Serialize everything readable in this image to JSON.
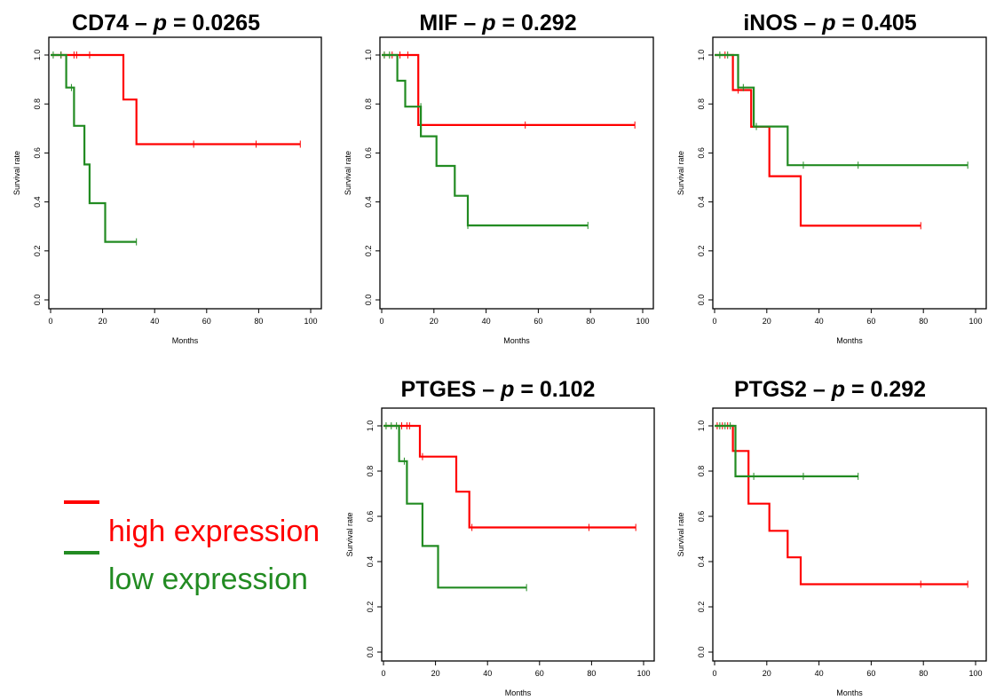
{
  "figure": {
    "legend": {
      "high_label": "high expression",
      "low_label": "low expression",
      "high_color": "#ff0000",
      "low_color": "#228b22"
    }
  },
  "chart_data": [
    {
      "type": "line",
      "title_gene": "CD74",
      "title_sep": " – ",
      "title_p": "p",
      "title_eq": " = ",
      "title_value": "0.0265",
      "xlabel": "Months",
      "ylabel": "Survival rate",
      "xlim": [
        0,
        100
      ],
      "ylim": [
        0,
        1
      ],
      "xticks": [
        0,
        20,
        40,
        60,
        80,
        100
      ],
      "yticks": [
        "0.0",
        "0.2",
        "0.4",
        "0.6",
        "0.8",
        "1.0"
      ],
      "series": [
        {
          "group": "high",
          "color": "#ff0000",
          "steps": [
            [
              0,
              1.0
            ],
            [
              28,
              1.0
            ],
            [
              28,
              0.818
            ],
            [
              33,
              0.818
            ],
            [
              33,
              0.636
            ],
            [
              96,
              0.636
            ]
          ],
          "censor": [
            [
              4,
              1.0
            ],
            [
              9,
              1.0
            ],
            [
              10,
              1.0
            ],
            [
              15,
              1.0
            ],
            [
              55,
              0.636
            ],
            [
              79,
              0.636
            ],
            [
              96,
              0.636
            ]
          ]
        },
        {
          "group": "low",
          "color": "#228b22",
          "steps": [
            [
              0,
              1.0
            ],
            [
              6,
              1.0
            ],
            [
              6,
              0.867
            ],
            [
              9,
              0.867
            ],
            [
              9,
              0.711
            ],
            [
              13,
              0.711
            ],
            [
              13,
              0.553
            ],
            [
              15,
              0.553
            ],
            [
              15,
              0.395
            ],
            [
              21,
              0.395
            ],
            [
              21,
              0.237
            ],
            [
              33,
              0.237
            ]
          ],
          "censor": [
            [
              1,
              1.0
            ],
            [
              4,
              1.0
            ],
            [
              8,
              0.867
            ],
            [
              33,
              0.237
            ]
          ]
        }
      ]
    },
    {
      "type": "line",
      "title_gene": "MIF",
      "title_sep": " – ",
      "title_p": "p",
      "title_eq": " = ",
      "title_value": "0.292",
      "xlabel": "Months",
      "ylabel": "Survival rate",
      "xlim": [
        0,
        100
      ],
      "ylim": [
        0,
        1
      ],
      "xticks": [
        0,
        20,
        40,
        60,
        80,
        100
      ],
      "yticks": [
        "0.0",
        "0.2",
        "0.4",
        "0.6",
        "0.8",
        "1.0"
      ],
      "series": [
        {
          "group": "high",
          "color": "#ff0000",
          "steps": [
            [
              0,
              1.0
            ],
            [
              14,
              1.0
            ],
            [
              14,
              0.714
            ],
            [
              97,
              0.714
            ]
          ],
          "censor": [
            [
              1,
              1.0
            ],
            [
              4,
              1.0
            ],
            [
              7,
              1.0
            ],
            [
              10,
              1.0
            ],
            [
              55,
              0.714
            ],
            [
              97,
              0.714
            ]
          ]
        },
        {
          "group": "low",
          "color": "#228b22",
          "steps": [
            [
              0,
              1.0
            ],
            [
              6,
              1.0
            ],
            [
              6,
              0.895
            ],
            [
              9,
              0.895
            ],
            [
              9,
              0.789
            ],
            [
              15,
              0.789
            ],
            [
              15,
              0.668
            ],
            [
              21,
              0.668
            ],
            [
              21,
              0.547
            ],
            [
              28,
              0.547
            ],
            [
              28,
              0.425
            ],
            [
              33,
              0.425
            ],
            [
              33,
              0.304
            ],
            [
              79,
              0.304
            ]
          ],
          "censor": [
            [
              1,
              1.0
            ],
            [
              3,
              1.0
            ],
            [
              15,
              0.789
            ],
            [
              33,
              0.304
            ],
            [
              79,
              0.304
            ]
          ]
        }
      ]
    },
    {
      "type": "line",
      "title_gene": "iNOS",
      "title_sep": " – ",
      "title_p": "p",
      "title_eq": " = ",
      "title_value": "0.405",
      "xlabel": "Months",
      "ylabel": "Survival rate",
      "xlim": [
        0,
        100
      ],
      "ylim": [
        0,
        1
      ],
      "xticks": [
        0,
        20,
        40,
        60,
        80,
        100
      ],
      "yticks": [
        "0.0",
        "0.2",
        "0.4",
        "0.6",
        "0.8",
        "1.0"
      ],
      "series": [
        {
          "group": "high",
          "color": "#ff0000",
          "steps": [
            [
              0,
              1.0
            ],
            [
              7,
              1.0
            ],
            [
              7,
              0.857
            ],
            [
              14,
              0.857
            ],
            [
              14,
              0.707
            ],
            [
              21,
              0.707
            ],
            [
              21,
              0.505
            ],
            [
              33,
              0.505
            ],
            [
              33,
              0.303
            ],
            [
              79,
              0.303
            ]
          ],
          "censor": [
            [
              4,
              1.0
            ],
            [
              9,
              0.857
            ],
            [
              79,
              0.303
            ]
          ]
        },
        {
          "group": "low",
          "color": "#228b22",
          "steps": [
            [
              0,
              1.0
            ],
            [
              9,
              1.0
            ],
            [
              9,
              0.867
            ],
            [
              15,
              0.867
            ],
            [
              15,
              0.708
            ],
            [
              28,
              0.708
            ],
            [
              28,
              0.55
            ],
            [
              97,
              0.55
            ]
          ],
          "censor": [
            [
              2,
              1.0
            ],
            [
              5,
              1.0
            ],
            [
              11,
              0.867
            ],
            [
              16,
              0.708
            ],
            [
              34,
              0.55
            ],
            [
              55,
              0.55
            ],
            [
              97,
              0.55
            ]
          ]
        }
      ]
    },
    {
      "type": "line",
      "title_gene": "PTGES",
      "title_sep": " – ",
      "title_p": "p",
      "title_eq": " = ",
      "title_value": "0.102",
      "xlabel": "Months",
      "ylabel": "Survival rate",
      "xlim": [
        0,
        100
      ],
      "ylim": [
        0,
        1
      ],
      "xticks": [
        0,
        20,
        40,
        60,
        80,
        100
      ],
      "yticks": [
        "0.0",
        "0.2",
        "0.4",
        "0.6",
        "0.8",
        "1.0"
      ],
      "series": [
        {
          "group": "high",
          "color": "#ff0000",
          "steps": [
            [
              0,
              1.0
            ],
            [
              14,
              1.0
            ],
            [
              14,
              0.864
            ],
            [
              28,
              0.864
            ],
            [
              28,
              0.709
            ],
            [
              33,
              0.709
            ],
            [
              33,
              0.551
            ],
            [
              97,
              0.551
            ]
          ],
          "censor": [
            [
              7,
              1.0
            ],
            [
              9,
              1.0
            ],
            [
              10,
              1.0
            ],
            [
              15,
              0.864
            ],
            [
              34,
              0.551
            ],
            [
              79,
              0.551
            ],
            [
              97,
              0.551
            ]
          ]
        },
        {
          "group": "low",
          "color": "#228b22",
          "steps": [
            [
              0,
              1.0
            ],
            [
              6,
              1.0
            ],
            [
              6,
              0.844
            ],
            [
              9,
              0.844
            ],
            [
              9,
              0.656
            ],
            [
              15,
              0.656
            ],
            [
              15,
              0.469
            ],
            [
              21,
              0.469
            ],
            [
              21,
              0.285
            ],
            [
              55,
              0.285
            ]
          ],
          "censor": [
            [
              1,
              1.0
            ],
            [
              3,
              1.0
            ],
            [
              5,
              1.0
            ],
            [
              8,
              0.844
            ],
            [
              55,
              0.285
            ]
          ]
        }
      ]
    },
    {
      "type": "line",
      "title_gene": "PTGS2",
      "title_sep": " – ",
      "title_p": "p",
      "title_eq": " = ",
      "title_value": "0.292",
      "xlabel": "Months",
      "ylabel": "Survival rate",
      "xlim": [
        0,
        100
      ],
      "ylim": [
        0,
        1
      ],
      "xticks": [
        0,
        20,
        40,
        60,
        80,
        100
      ],
      "yticks": [
        "0.0",
        "0.2",
        "0.4",
        "0.6",
        "0.8",
        "1.0"
      ],
      "series": [
        {
          "group": "high",
          "color": "#ff0000",
          "steps": [
            [
              0,
              1.0
            ],
            [
              7,
              1.0
            ],
            [
              7,
              0.889
            ],
            [
              13,
              0.889
            ],
            [
              13,
              0.656
            ],
            [
              21,
              0.656
            ],
            [
              21,
              0.536
            ],
            [
              28,
              0.536
            ],
            [
              28,
              0.419
            ],
            [
              33,
              0.419
            ],
            [
              33,
              0.3
            ],
            [
              97,
              0.3
            ]
          ],
          "censor": [
            [
              1,
              1.0
            ],
            [
              3,
              1.0
            ],
            [
              5,
              1.0
            ],
            [
              79,
              0.3
            ],
            [
              97,
              0.3
            ]
          ]
        },
        {
          "group": "low",
          "color": "#228b22",
          "steps": [
            [
              0,
              1.0
            ],
            [
              8,
              1.0
            ],
            [
              8,
              0.777
            ],
            [
              55,
              0.777
            ]
          ],
          "censor": [
            [
              2,
              1.0
            ],
            [
              4,
              1.0
            ],
            [
              6,
              1.0
            ],
            [
              15,
              0.777
            ],
            [
              34,
              0.777
            ],
            [
              55,
              0.777
            ]
          ]
        }
      ]
    }
  ]
}
